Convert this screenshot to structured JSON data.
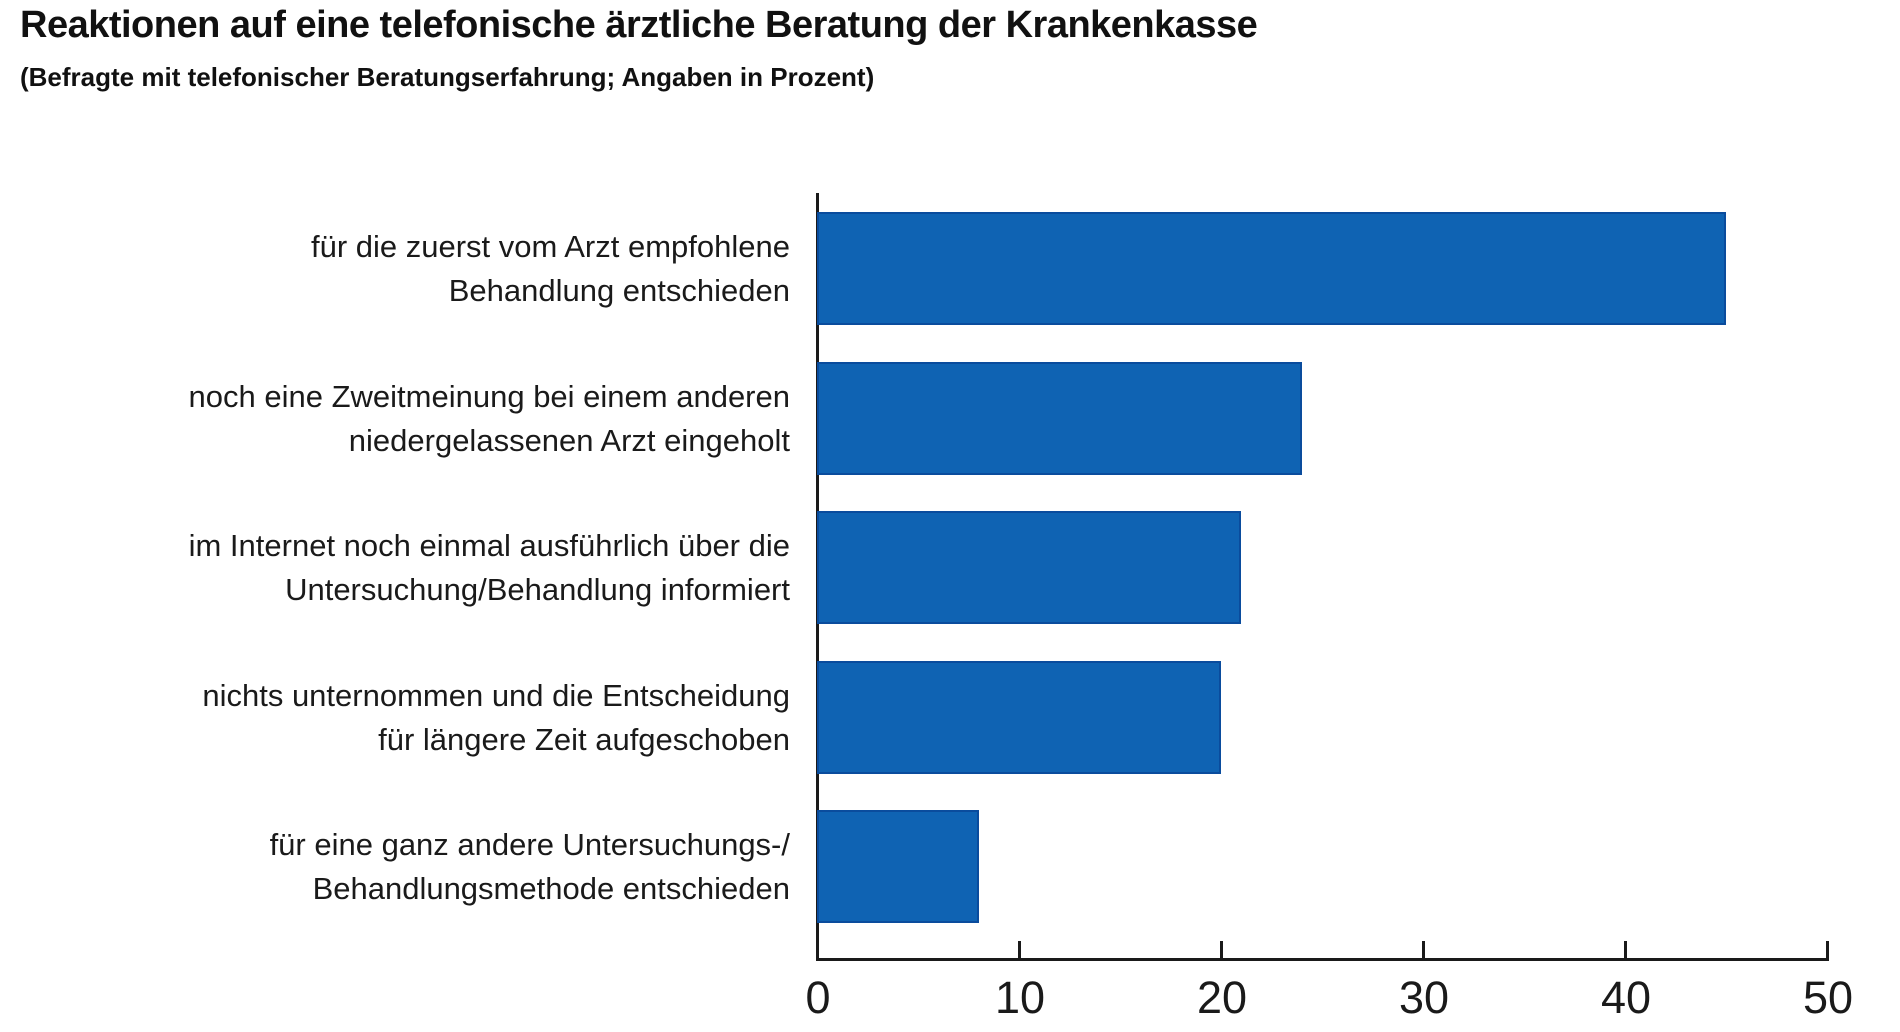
{
  "chart_data": {
    "type": "bar",
    "orientation": "horizontal",
    "title": "Reaktionen auf eine telefonische ärztliche Beratung der Krankenkasse",
    "subtitle": "(Befragte mit telefonischer Beratungserfahrung; Angaben in Prozent)",
    "unit": "Prozent",
    "categories": [
      "für die zuerst vom Arzt empfohlene Behandlung entschieden",
      "noch eine Zweitmeinung bei einem anderen niedergelassenen Arzt eingeholt",
      "im Internet noch einmal ausführlich über die Untersuchung/Behandlung informiert",
      "nichts unternommen und die Entscheidung für längere Zeit aufgeschoben",
      "für eine ganz andere Untersuchungs-/Behandlungsmethode entschieden"
    ],
    "categories_lines": [
      [
        "für die zuerst vom Arzt empfohlene",
        "Behandlung entschieden"
      ],
      [
        "noch eine Zweitmeinung bei einem anderen",
        "niedergelassenen Arzt eingeholt"
      ],
      [
        "im Internet noch einmal ausführlich über die",
        "Untersuchung/Behandlung informiert"
      ],
      [
        "nichts unternommen und die Entscheidung",
        "für längere Zeit aufgeschoben"
      ],
      [
        "für eine ganz andere Untersuchungs-/",
        "Behandlungsmethode entschieden"
      ]
    ],
    "values": [
      45,
      24,
      21,
      20,
      8
    ],
    "xlim": [
      0,
      50
    ],
    "xticks": [
      0,
      10,
      20,
      30,
      40,
      50
    ],
    "xtick_labels": [
      "0",
      "10",
      "20",
      "30",
      "40",
      "50"
    ],
    "grid": false,
    "legend": false,
    "bar_color": "#0F63B3",
    "bar_border_color": "#0A4C9D",
    "axis_color": "#1a1a1a"
  }
}
